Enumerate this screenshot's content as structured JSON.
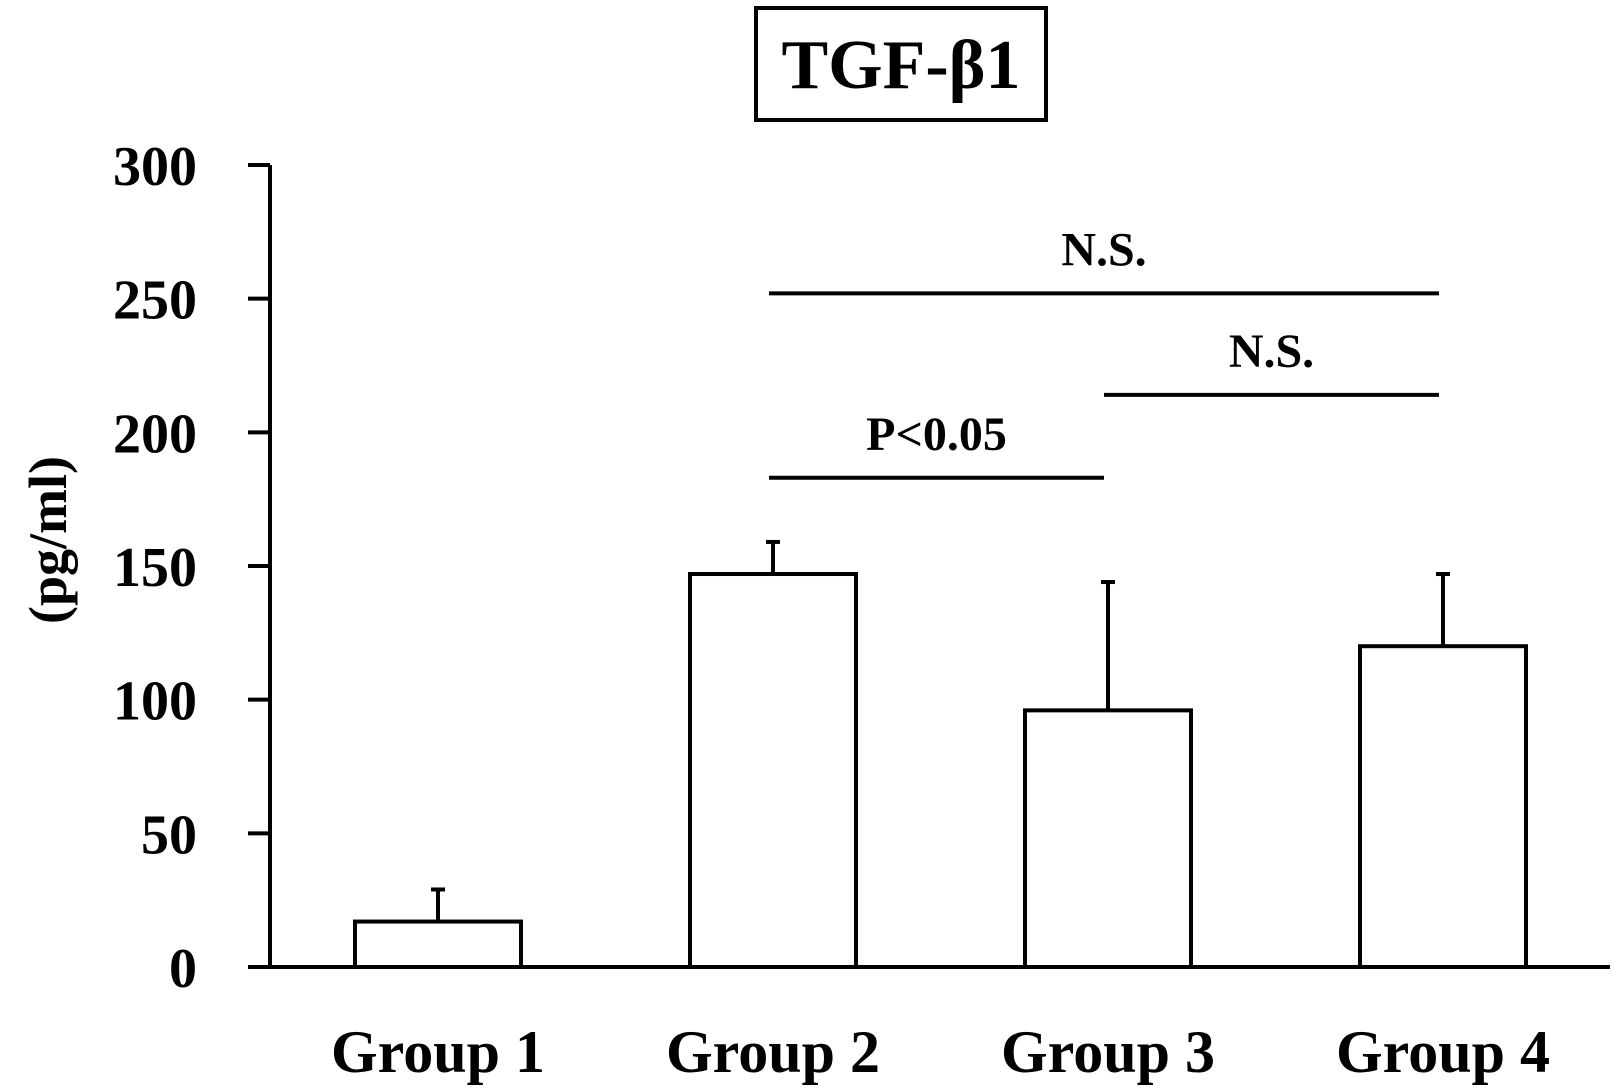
{
  "chart_data": {
    "type": "bar",
    "title": "TGF-β1",
    "ylabel": "(pg/ml)",
    "xlabel": "",
    "categories": [
      "Group 1",
      "Group 2",
      "Group 3",
      "Group 4"
    ],
    "values": [
      17,
      147,
      96,
      120
    ],
    "error_upper": [
      29,
      159,
      144,
      147
    ],
    "ylim": [
      0,
      300
    ],
    "yticks": [
      0,
      50,
      100,
      150,
      200,
      250,
      300
    ],
    "bar_fill": "#ffffff",
    "bar_stroke": "#000000",
    "grid": false,
    "annotations": [
      {
        "text": "P<0.05",
        "from": "Group 2",
        "to": "Group 3",
        "y": 183
      },
      {
        "text": "N.S.",
        "from": "Group 3",
        "to": "Group 4",
        "y": 214
      },
      {
        "text": "N.S.",
        "from": "Group 2",
        "to": "Group 4",
        "y": 252
      }
    ]
  }
}
